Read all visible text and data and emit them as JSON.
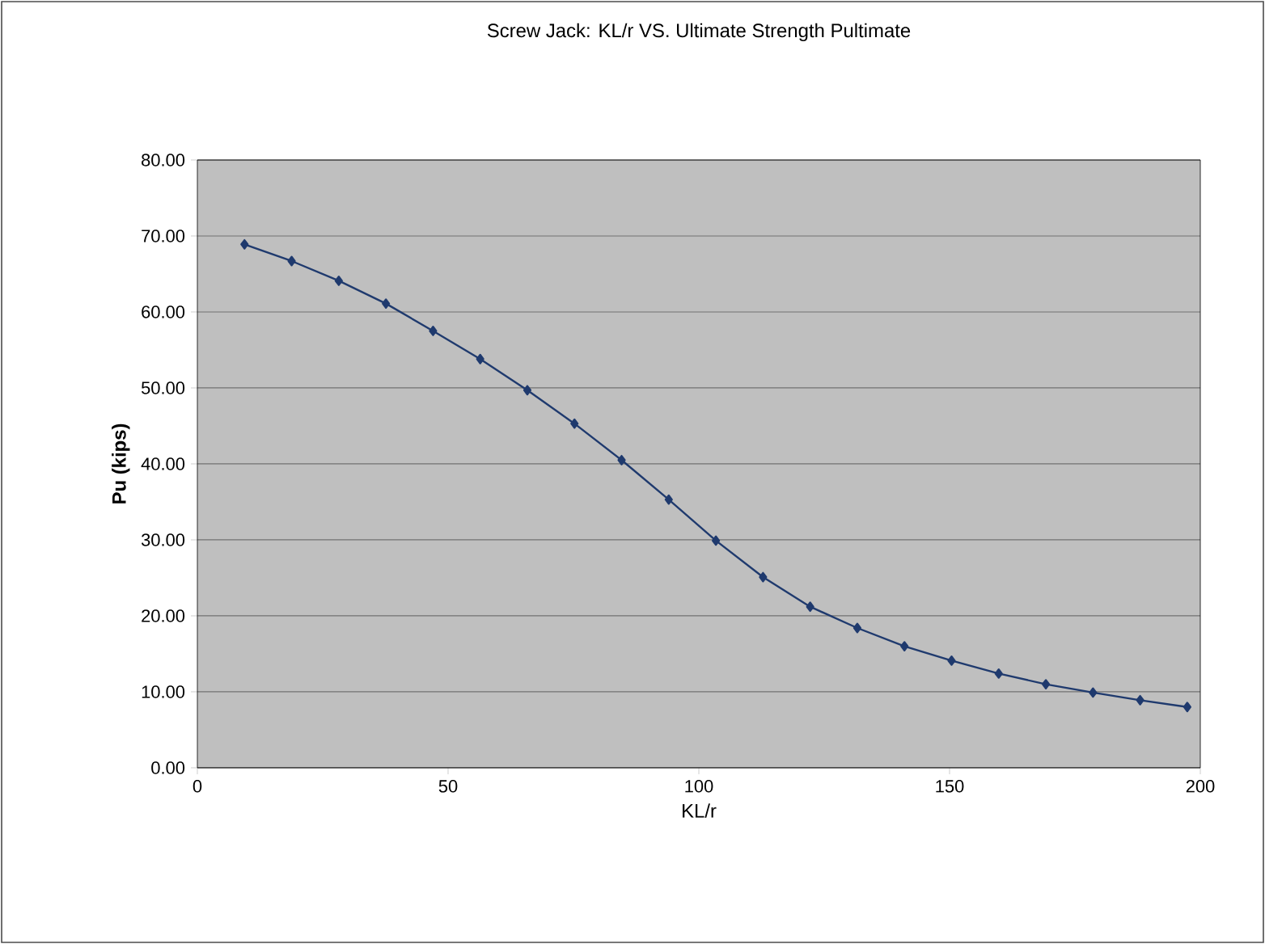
{
  "chart_data": {
    "type": "line",
    "title": "Screw Jack: KL/r VS. Ultimate Strength Pultimate",
    "xlabel": "KL/r",
    "ylabel": "Pu (kips)",
    "x": [
      9.4,
      18.8,
      28.2,
      37.6,
      47,
      56.4,
      65.8,
      75.2,
      84.6,
      94,
      103.4,
      112.8,
      122.2,
      131.6,
      141,
      150.4,
      159.8,
      169.2,
      178.6,
      188,
      197.4
    ],
    "series": [
      {
        "color": "#1f3a6e",
        "values": [
          68.9,
          66.7,
          64.1,
          61.1,
          57.5,
          53.8,
          49.7,
          45.3,
          40.5,
          35.3,
          29.9,
          25.1,
          21.2,
          18.4,
          16.0,
          14.1,
          12.4,
          11.0,
          9.9,
          8.9,
          8.0
        ]
      }
    ],
    "xlim": [
      0,
      200
    ],
    "xticks": [
      0,
      50,
      100,
      150,
      200
    ],
    "ylim": [
      0,
      80
    ],
    "yticks": [
      {
        "value": 0,
        "label": "0.00"
      },
      {
        "value": 10,
        "label": "10.00"
      },
      {
        "value": 20,
        "label": "20.00"
      },
      {
        "value": 30,
        "label": "30.00"
      },
      {
        "value": 40,
        "label": "40.00"
      },
      {
        "value": 50,
        "label": "50.00"
      },
      {
        "value": 60,
        "label": "60.00"
      },
      {
        "value": 70,
        "label": "70.00"
      },
      {
        "value": 80,
        "label": "80.00"
      }
    ],
    "grid": "y",
    "marker": "diamond",
    "line_style": "solid"
  }
}
